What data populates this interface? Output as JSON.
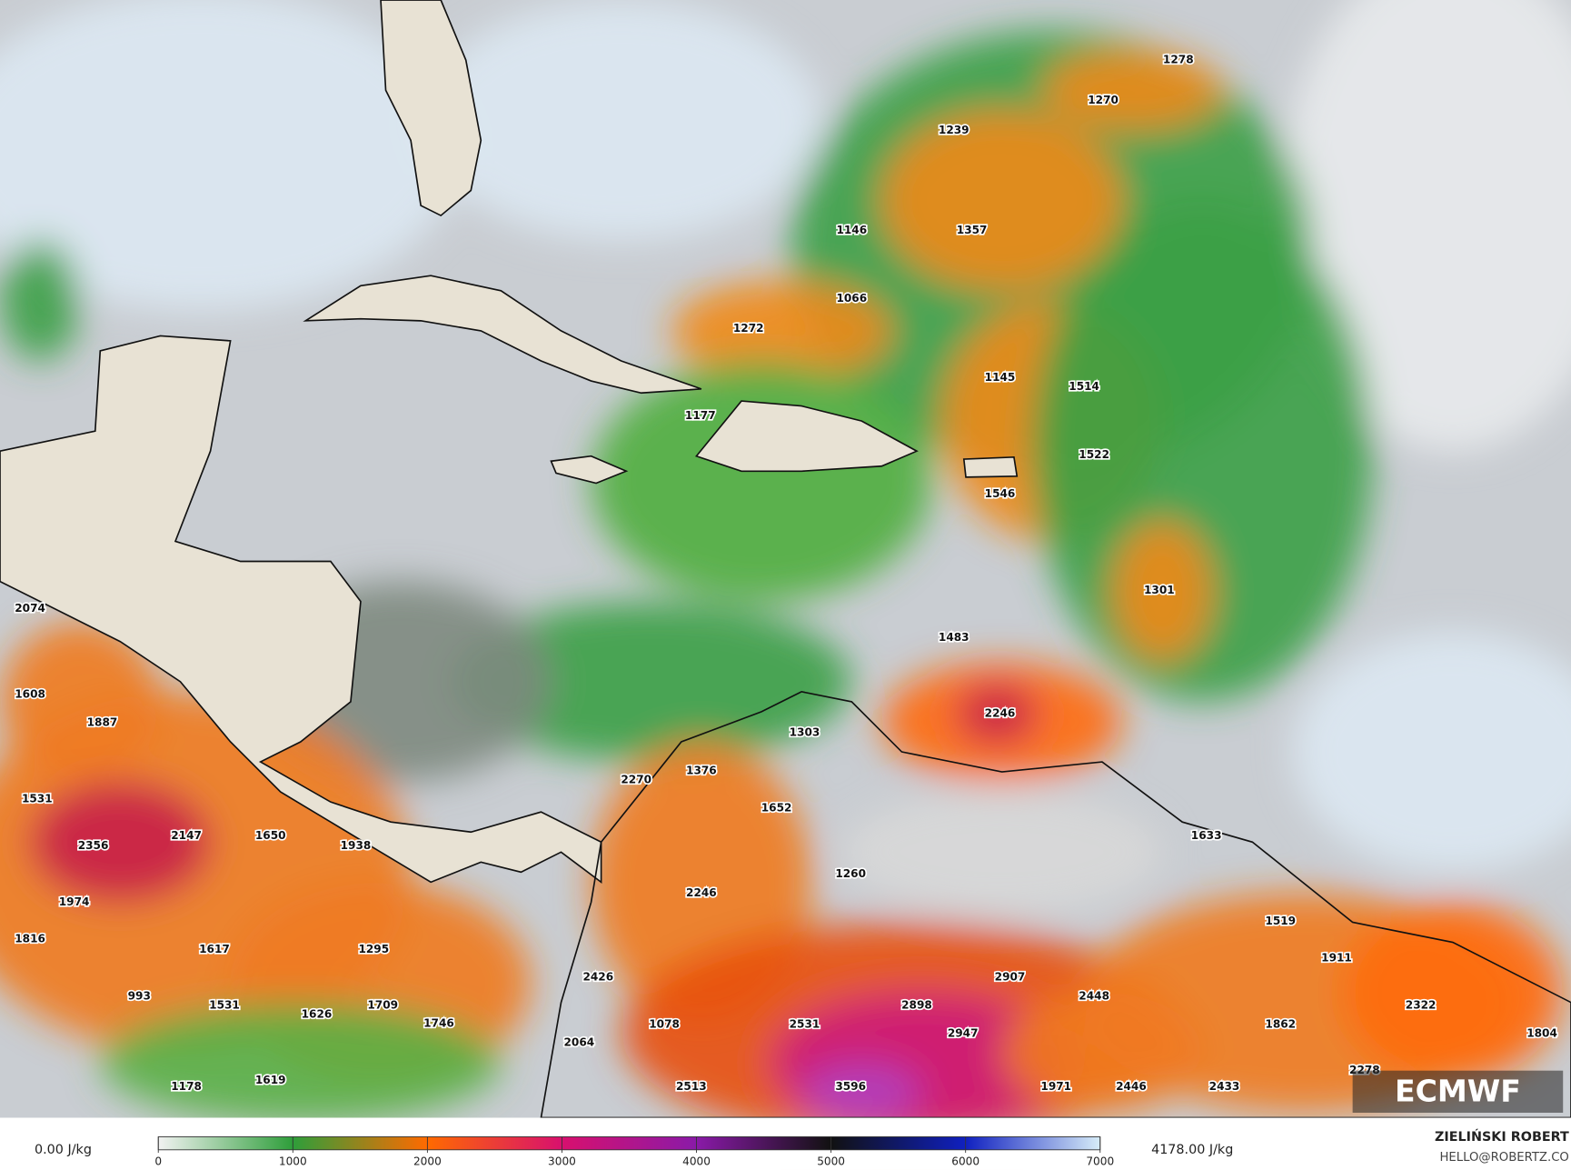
{
  "map": {
    "labels": [
      1278,
      1270,
      1239,
      1146,
      1357,
      1066,
      1272,
      1145,
      1514,
      1177,
      1522,
      1546,
      1301,
      1483,
      2074,
      1608,
      1887,
      2246,
      1303,
      1376,
      2270,
      1531,
      1652,
      1633,
      2356,
      2147,
      1650,
      1938,
      1260,
      2246,
      1974,
      1519,
      1816,
      1617,
      1295,
      1911,
      2907,
      2426,
      993,
      2898,
      2448,
      2322,
      1531,
      1709,
      1626,
      1746,
      2531,
      1078,
      2947,
      1862,
      1804,
      2064,
      1178,
      1619,
      2513,
      3596,
      1971,
      2446,
      2433,
      2278
    ],
    "logo": "ECMWF"
  },
  "colorbar": {
    "min_label": "0.00 J/kg",
    "max_label": "4178.00 J/kg",
    "ticks": [
      0,
      1000,
      2000,
      3000,
      4000,
      5000,
      6000,
      7000
    ],
    "colors": [
      "#f2f2f2",
      "#2e9e3a",
      "#ff6a00",
      "#d8106e",
      "#8a1aa8",
      "#111111",
      "#1020c0",
      "#d6ecf8"
    ]
  },
  "footer": {
    "author": "ZIELIŃSKI ROBERT",
    "email": "HELLO@ROBERTZ.CO"
  }
}
